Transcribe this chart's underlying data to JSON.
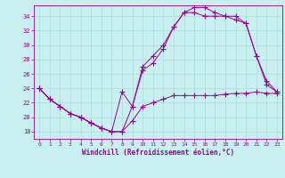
{
  "xlabel": "Windchill (Refroidissement éolien,°C)",
  "bg_color": "#c8f0f0",
  "line_color": "#990099",
  "grid_color": "#aadddd",
  "xlim": [
    -0.5,
    23.5
  ],
  "ylim": [
    17.0,
    35.5
  ],
  "yticks": [
    18,
    20,
    22,
    24,
    26,
    28,
    30,
    32,
    34
  ],
  "xticks": [
    0,
    1,
    2,
    3,
    4,
    5,
    6,
    7,
    8,
    9,
    10,
    11,
    12,
    13,
    14,
    15,
    16,
    17,
    18,
    19,
    20,
    21,
    22,
    23
  ],
  "series1_x": [
    0,
    1,
    2,
    3,
    4,
    5,
    6,
    7,
    8,
    9,
    10,
    11,
    12,
    13,
    14,
    15,
    16,
    17,
    18,
    19,
    20,
    21,
    22,
    23
  ],
  "series1_y": [
    24.0,
    22.5,
    21.5,
    20.5,
    20.0,
    19.2,
    18.5,
    18.0,
    18.0,
    19.5,
    21.5,
    22.0,
    22.5,
    23.0,
    23.0,
    23.0,
    23.0,
    23.0,
    23.2,
    23.3,
    23.3,
    23.5,
    23.3,
    23.3
  ],
  "series2_x": [
    0,
    1,
    2,
    3,
    4,
    5,
    6,
    7,
    8,
    9,
    10,
    11,
    12,
    13,
    14,
    15,
    16,
    17,
    18,
    19,
    20,
    21,
    22,
    23
  ],
  "series2_y": [
    24.0,
    22.5,
    21.5,
    20.5,
    20.0,
    19.2,
    18.5,
    18.0,
    18.0,
    21.5,
    26.5,
    27.5,
    29.5,
    32.5,
    34.5,
    35.2,
    35.2,
    34.5,
    34.0,
    34.0,
    33.0,
    28.5,
    24.5,
    23.5
  ],
  "series3_x": [
    0,
    1,
    2,
    3,
    4,
    5,
    6,
    7,
    8,
    9,
    10,
    11,
    12,
    13,
    14,
    15,
    16,
    17,
    18,
    19,
    20,
    21,
    22,
    23
  ],
  "series3_y": [
    24.0,
    22.5,
    21.5,
    20.5,
    20.0,
    19.2,
    18.5,
    18.0,
    23.5,
    21.5,
    27.0,
    28.5,
    30.0,
    32.5,
    34.5,
    34.5,
    34.0,
    34.0,
    34.0,
    33.5,
    33.0,
    28.5,
    25.0,
    23.5
  ]
}
